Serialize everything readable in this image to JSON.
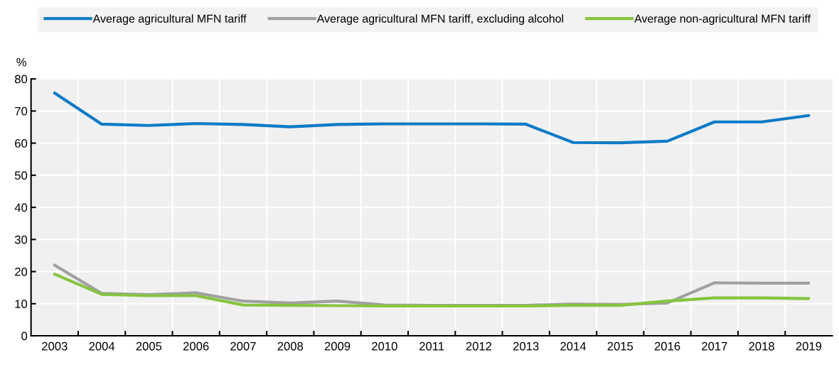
{
  "chart_data": {
    "type": "line",
    "ylabel": "%",
    "categories": [
      "2003",
      "2004",
      "2005",
      "2006",
      "2007",
      "2008",
      "2009",
      "2010",
      "2011",
      "2012",
      "2013",
      "2014",
      "2015",
      "2016",
      "2017",
      "2018",
      "2019"
    ],
    "series": [
      {
        "name": "Average agricultural MFN tariff",
        "color": "#0c7bc6",
        "values": [
          75.6,
          65.9,
          65.5,
          66.1,
          65.8,
          65.1,
          65.8,
          66.0,
          66.0,
          66.0,
          65.9,
          60.2,
          60.1,
          60.6,
          66.6,
          66.6,
          68.6
        ]
      },
      {
        "name": "Average agricultural MFN tariff, excluding alcohol",
        "color": "#a0a0a0",
        "values": [
          22.0,
          13.2,
          12.8,
          13.4,
          10.8,
          10.2,
          10.8,
          9.6,
          9.5,
          9.5,
          9.5,
          9.9,
          9.8,
          10.2,
          16.5,
          16.4,
          16.4
        ]
      },
      {
        "name": "Average non-agricultural MFN tariff",
        "color": "#86c440",
        "values": [
          19.2,
          12.9,
          12.5,
          12.5,
          9.6,
          9.5,
          9.4,
          9.3,
          9.3,
          9.3,
          9.3,
          9.5,
          9.5,
          10.8,
          11.8,
          11.8,
          11.6
        ]
      }
    ],
    "ylim": [
      0,
      80
    ],
    "yticks": [
      0,
      10,
      20,
      30,
      40,
      50,
      60,
      70,
      80
    ],
    "grid": true,
    "legend": "top",
    "marker": "none",
    "line_style": "solid"
  }
}
